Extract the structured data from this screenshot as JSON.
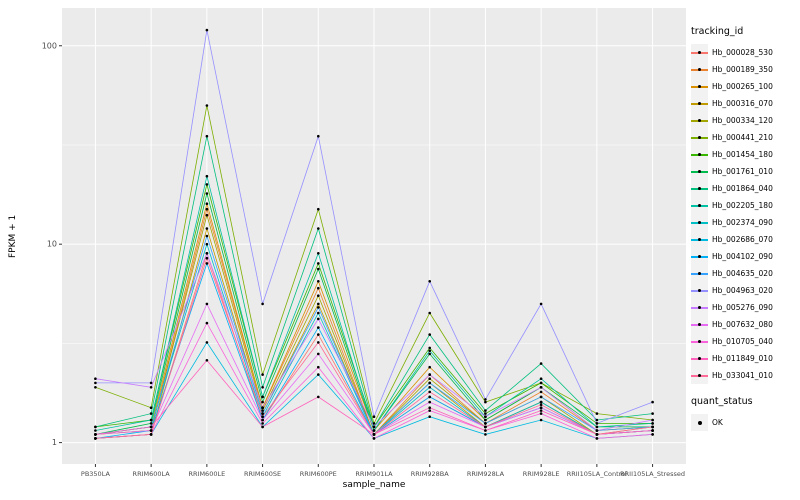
{
  "chart_data": {
    "type": "line",
    "title": "",
    "xlabel": "sample_name",
    "ylabel": "FPKM + 1",
    "yscale": "log10",
    "ylim": [
      0.78,
      155
    ],
    "ytick_values": [
      1,
      10,
      100
    ],
    "ytick_labels": [
      "1",
      "10",
      "100"
    ],
    "minor_ytick_values": [
      3.1623,
      31.623
    ],
    "panel_bg": "#EBEBEB",
    "grid_color": "#FFFFFF",
    "point_color": "#000000",
    "legend_position": "right",
    "categories": [
      "PB350LA",
      "RRIM600LA",
      "RRIM600LE",
      "RRIM600SE",
      "RRIM600PE",
      "RRIM901LA",
      "RRIM928BA",
      "RRIM928LA",
      "RRIM928LE",
      "RRII105LA_Control",
      "RRII105LA_Stressed"
    ],
    "legend": {
      "color_title": "tracking_id",
      "shape_title": "quant_status",
      "shape_items": [
        {
          "label": "OK"
        }
      ]
    },
    "series": [
      {
        "name": "Hb_000028_530",
        "color": "#F8766D",
        "values": [
          1.05,
          1.1,
          9.0,
          1.3,
          3.5,
          1.1,
          1.7,
          1.2,
          1.6,
          1.1,
          1.15
        ]
      },
      {
        "name": "Hb_000189_350",
        "color": "#EA8331",
        "values": [
          1.1,
          1.15,
          15.0,
          1.5,
          6.0,
          1.1,
          2.2,
          1.25,
          1.8,
          1.15,
          1.2
        ]
      },
      {
        "name": "Hb_000265_100",
        "color": "#D89000",
        "values": [
          1.1,
          1.2,
          16.0,
          1.5,
          6.5,
          1.15,
          2.4,
          1.3,
          1.9,
          1.15,
          1.2
        ]
      },
      {
        "name": "Hb_000316_070",
        "color": "#C09B00",
        "values": [
          1.05,
          1.1,
          12.0,
          1.4,
          5.0,
          1.1,
          2.0,
          1.2,
          1.6,
          1.1,
          1.15
        ]
      },
      {
        "name": "Hb_000334_120",
        "color": "#A3A500",
        "values": [
          1.1,
          1.15,
          14.0,
          1.45,
          5.5,
          1.1,
          2.1,
          1.25,
          1.7,
          1.1,
          1.2
        ]
      },
      {
        "name": "Hb_000441_210",
        "color": "#7CAE00",
        "values": [
          1.9,
          1.5,
          50.0,
          2.2,
          15.0,
          1.25,
          4.5,
          1.6,
          2.0,
          1.4,
          1.3
        ]
      },
      {
        "name": "Hb_001454_180",
        "color": "#39B600",
        "values": [
          1.2,
          1.3,
          20.0,
          1.7,
          8.0,
          1.2,
          3.0,
          1.4,
          2.0,
          1.25,
          1.25
        ]
      },
      {
        "name": "Hb_001761_010",
        "color": "#00BB4E",
        "values": [
          1.1,
          1.25,
          18.0,
          1.6,
          7.5,
          1.15,
          2.8,
          1.3,
          1.9,
          1.2,
          1.2
        ]
      },
      {
        "name": "Hb_001864_040",
        "color": "#00BF7D",
        "values": [
          1.2,
          1.4,
          35.0,
          1.9,
          12.0,
          1.2,
          3.5,
          1.45,
          2.5,
          1.3,
          1.4
        ]
      },
      {
        "name": "Hb_002205_180",
        "color": "#00C1A3",
        "values": [
          1.15,
          1.3,
          22.0,
          1.7,
          9.0,
          1.15,
          2.9,
          1.35,
          2.1,
          1.2,
          1.25
        ]
      },
      {
        "name": "Hb_002374_090",
        "color": "#00BFC4",
        "values": [
          1.1,
          1.2,
          10.0,
          1.35,
          4.5,
          1.1,
          1.9,
          1.2,
          1.6,
          1.1,
          1.15
        ]
      },
      {
        "name": "Hb_002686_070",
        "color": "#00BAE0",
        "values": [
          1.05,
          1.1,
          3.2,
          1.2,
          2.2,
          1.05,
          1.35,
          1.1,
          1.3,
          1.05,
          1.1
        ]
      },
      {
        "name": "Hb_004102_090",
        "color": "#00B0F6",
        "values": [
          1.05,
          1.15,
          8.0,
          1.3,
          3.8,
          1.1,
          1.7,
          1.2,
          1.5,
          1.1,
          1.15
        ]
      },
      {
        "name": "Hb_004635_020",
        "color": "#35A2FF",
        "values": [
          1.1,
          1.2,
          11.0,
          1.4,
          4.8,
          1.1,
          2.0,
          1.25,
          1.7,
          1.15,
          1.2
        ]
      },
      {
        "name": "Hb_004963_020",
        "color": "#9590FF",
        "values": [
          2.0,
          2.0,
          120.0,
          5.0,
          35.0,
          1.35,
          6.5,
          1.65,
          5.0,
          1.25,
          1.6
        ]
      },
      {
        "name": "Hb_005276_090",
        "color": "#C77CFF",
        "values": [
          2.1,
          1.9,
          9.0,
          1.5,
          4.2,
          1.2,
          2.2,
          1.35,
          1.9,
          1.15,
          1.3
        ]
      },
      {
        "name": "Hb_007632_080",
        "color": "#E76BF3",
        "values": [
          1.1,
          1.15,
          5.0,
          1.3,
          2.8,
          1.1,
          1.6,
          1.2,
          1.5,
          1.1,
          1.15
        ]
      },
      {
        "name": "Hb_010705_040",
        "color": "#FA62DB",
        "values": [
          1.05,
          1.1,
          4.0,
          1.25,
          2.4,
          1.05,
          1.45,
          1.15,
          1.4,
          1.05,
          1.1
        ]
      },
      {
        "name": "Hb_011849_010",
        "color": "#FF62BC",
        "values": [
          1.1,
          1.2,
          2.6,
          1.2,
          1.7,
          1.1,
          1.5,
          1.15,
          1.45,
          1.1,
          1.15
        ]
      },
      {
        "name": "Hb_033041_010",
        "color": "#FF6A98",
        "values": [
          1.05,
          1.1,
          8.5,
          1.35,
          3.2,
          1.1,
          1.8,
          1.2,
          1.55,
          1.1,
          1.2
        ]
      }
    ]
  }
}
